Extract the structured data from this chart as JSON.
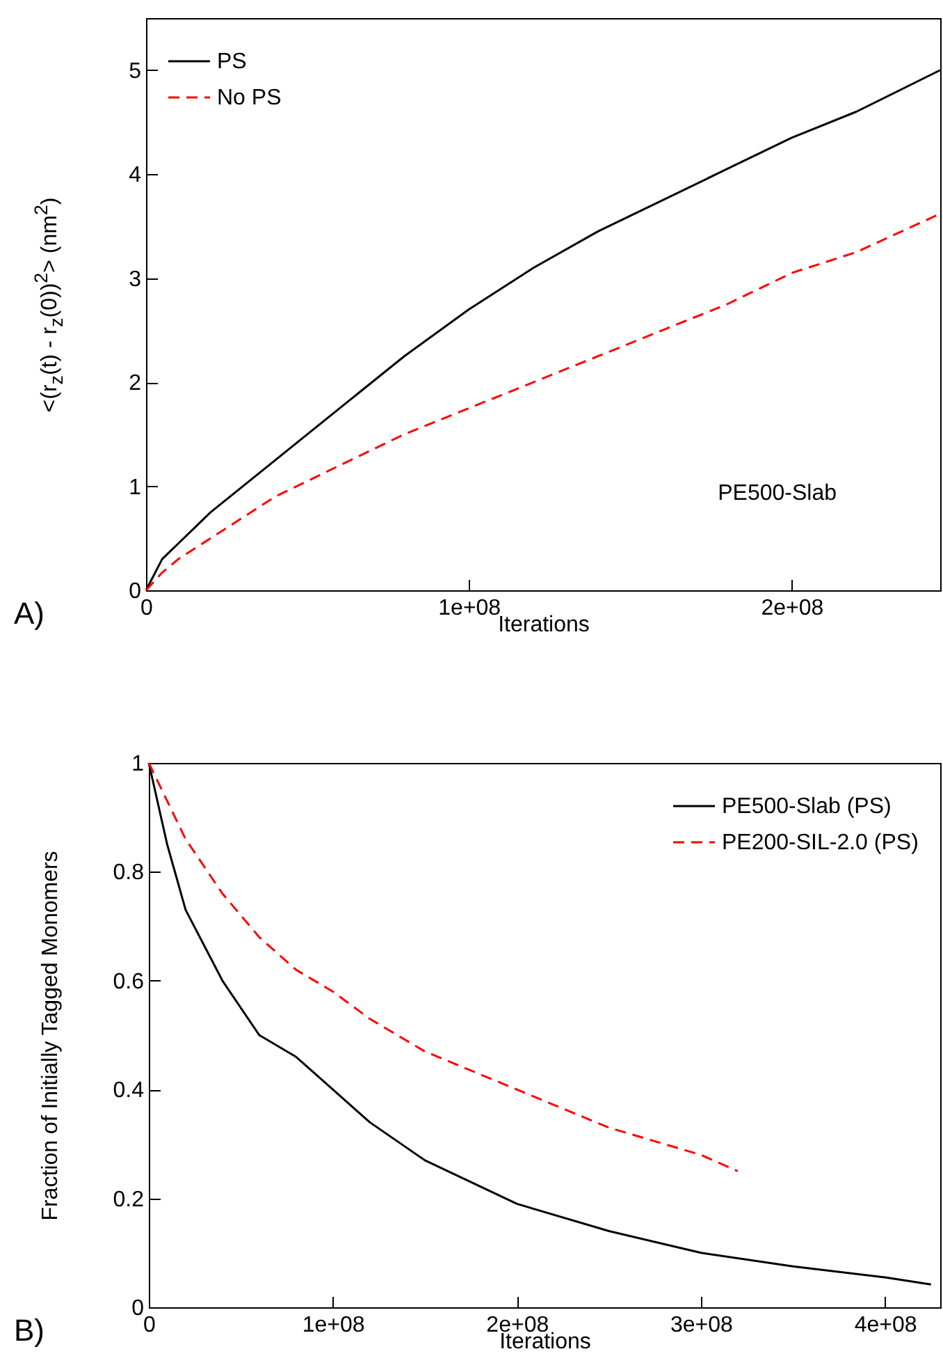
{
  "chart_data": [
    {
      "type": "line",
      "xlabel": "Iterations",
      "ylabel": "<(r$_{z}$(t) - r$_{z}$(0))$^{2}$> (nm$^{2}$)",
      "annotations": [
        "PE500-Slab",
        "A)"
      ],
      "xlim": [
        0,
        246000000
      ],
      "ylim": [
        0,
        5.5
      ],
      "xticks": [
        0,
        {
          "value": 100000000,
          "label": "1e+08"
        },
        {
          "value": 200000000,
          "label": "2e+08"
        }
      ],
      "yticks": [
        0,
        1,
        2,
        3,
        4,
        5
      ],
      "grid": false,
      "legend": "top left",
      "marker": "none",
      "x": [
        0,
        5000000,
        10000000,
        20000000,
        40000000,
        60000000,
        80000000,
        100000000,
        120000000,
        140000000,
        160000000,
        180000000,
        200000000,
        220000000,
        246000000
      ],
      "series": [
        {
          "name": "PS",
          "color": "#000000",
          "line_style": "solid",
          "values": [
            0,
            0.3,
            0.45,
            0.75,
            1.25,
            1.75,
            2.25,
            2.7,
            3.1,
            3.45,
            3.75,
            4.05,
            4.35,
            4.6,
            5.0
          ]
        },
        {
          "name": "No PS",
          "color": "#ff0000",
          "line_style": "dashed",
          "values": [
            0,
            0.17,
            0.3,
            0.5,
            0.9,
            1.2,
            1.5,
            1.75,
            2.0,
            2.25,
            2.5,
            2.75,
            3.05,
            3.25,
            3.62
          ]
        }
      ]
    },
    {
      "type": "line",
      "xlabel": "Iterations",
      "ylabel": "Fraction of Initially Tagged Monomers",
      "annotations": [
        "B)"
      ],
      "xlim": [
        0,
        430000000
      ],
      "ylim": [
        0,
        1
      ],
      "xticks": [
        0,
        {
          "value": 100000000,
          "label": "1e+08"
        },
        {
          "value": 200000000,
          "label": "2e+08"
        },
        {
          "value": 300000000,
          "label": "3e+08"
        },
        {
          "value": 400000000,
          "label": "4e+08"
        }
      ],
      "yticks": [
        0,
        0.2,
        0.4,
        0.6,
        0.8,
        1
      ],
      "grid": false,
      "legend": "top right",
      "marker": "none",
      "series": [
        {
          "name": "PE500-Slab (PS)",
          "color": "#000000",
          "line_style": "solid",
          "x": [
            0,
            10000000,
            20000000,
            40000000,
            60000000,
            80000000,
            100000000,
            120000000,
            150000000,
            200000000,
            250000000,
            300000000,
            350000000,
            400000000,
            425000000
          ],
          "values": [
            1,
            0.85,
            0.73,
            0.6,
            0.5,
            0.46,
            0.4,
            0.34,
            0.27,
            0.19,
            0.14,
            0.1,
            0.075,
            0.055,
            0.042
          ]
        },
        {
          "name": "PE200-SIL-2.0 (PS)",
          "color": "#ff0000",
          "line_style": "dashed",
          "x": [
            0,
            20000000,
            40000000,
            60000000,
            80000000,
            100000000,
            120000000,
            150000000,
            200000000,
            250000000,
            300000000,
            320000000
          ],
          "values": [
            1,
            0.86,
            0.76,
            0.68,
            0.62,
            0.58,
            0.53,
            0.47,
            0.4,
            0.33,
            0.28,
            0.25
          ]
        }
      ]
    }
  ]
}
